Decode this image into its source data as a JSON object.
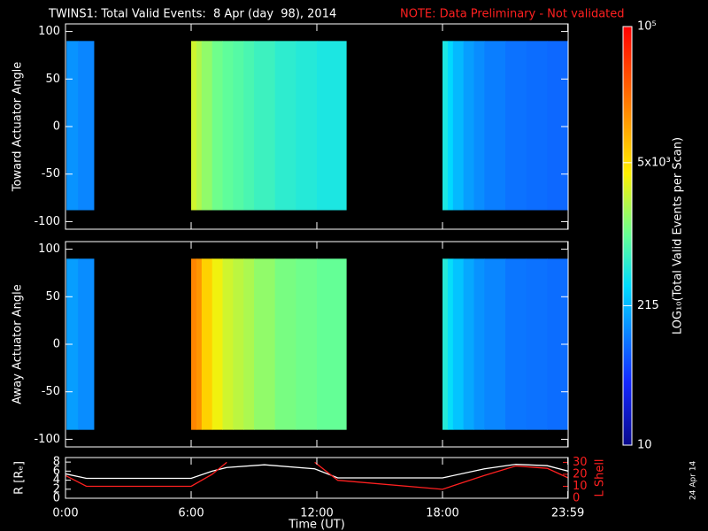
{
  "title": "TWINS1: Total Valid Events:  8 Apr (day  98), 2014",
  "note": "NOTE: Data Preliminary - Not validated",
  "date_stamp": "24 Apr 14",
  "colorbar": {
    "label": "LOG₁₀(Total Valid Events per Scan)",
    "lim": [
      10,
      100000
    ],
    "log": true,
    "ticks": [
      10,
      215,
      {
        "value": 5000,
        "label": "5x10³"
      },
      {
        "value": 100000,
        "label": "10⁵"
      }
    ]
  },
  "chart_data": [
    {
      "type": "heatmap",
      "ylabel": "Toward Actuator Angle",
      "ylim": [
        -108,
        108
      ],
      "yticks": [
        -100,
        -50,
        0,
        50,
        100
      ],
      "angle_range": [
        -88,
        90
      ],
      "windows": [
        {
          "bins": [
            0.05,
            0.6,
            1.35
          ],
          "values": [
            140,
            120
          ]
        },
        {
          "bins": [
            6.0,
            6.25,
            6.5,
            7.0,
            7.5,
            8.0,
            8.5,
            9.0,
            10.0,
            11.0,
            12.0,
            13.4
          ],
          "values": [
            2600,
            2000,
            1500,
            1100,
            950,
            850,
            750,
            650,
            550,
            500,
            450
          ]
        },
        {
          "bins": [
            18.0,
            18.25,
            18.5,
            19.0,
            19.5,
            20.0,
            21.0,
            22.0,
            23.0,
            24.0
          ],
          "values": [
            450,
            320,
            220,
            160,
            130,
            110,
            95,
            90,
            85
          ]
        }
      ]
    },
    {
      "type": "heatmap",
      "ylabel": "Away Actuator Angle",
      "ylim": [
        -108,
        108
      ],
      "yticks": [
        -100,
        -50,
        0,
        50,
        100
      ],
      "angle_range": [
        -90,
        90
      ],
      "windows": [
        {
          "bins": [
            0.05,
            0.6,
            1.35
          ],
          "values": [
            160,
            130
          ]
        },
        {
          "bins": [
            6.0,
            6.25,
            6.5,
            7.0,
            7.5,
            8.0,
            8.5,
            9.0,
            10.0,
            11.0,
            12.0,
            13.4
          ],
          "values": [
            16000,
            13000,
            6000,
            3500,
            2600,
            2200,
            1900,
            1500,
            1200,
            1100,
            1000
          ]
        },
        {
          "bins": [
            18.0,
            18.25,
            18.5,
            19.0,
            19.5,
            20.0,
            21.0,
            22.0,
            23.0,
            24.0
          ],
          "values": [
            500,
            350,
            250,
            180,
            140,
            120,
            100,
            95,
            90
          ]
        }
      ]
    },
    {
      "type": "line",
      "xlabel": "Time (UT)",
      "ylabel": "R [Rₑ]",
      "y2label": "L Shell",
      "xlim": [
        0,
        24
      ],
      "xticks": [
        {
          "value": 0,
          "label": "0:00"
        },
        {
          "value": 6,
          "label": "6:00"
        },
        {
          "value": 12,
          "label": "12:00"
        },
        {
          "value": 18,
          "label": "18:00"
        },
        {
          "value": 23.983,
          "label": "23:59"
        }
      ],
      "ylim": [
        0,
        9
      ],
      "yticks": [
        0,
        2,
        4,
        6,
        8
      ],
      "y2lim": [
        0,
        34
      ],
      "y2ticks": [
        0,
        10,
        20,
        30
      ],
      "x": [
        0,
        1,
        6,
        7,
        7.7,
        9.5,
        11.9,
        13,
        18,
        20,
        21.5,
        23,
        24
      ],
      "series": [
        {
          "color": "#ffffff",
          "values": [
            5.4,
            4.4,
            4.4,
            6,
            6.8,
            7.4,
            6.5,
            4.5,
            4.5,
            6.5,
            7.5,
            7.2,
            6
          ]
        },
        {
          "color": "#ff2020",
          "axis": "y2",
          "values": [
            19,
            10,
            10,
            20,
            30,
            null,
            30,
            15,
            7.5,
            19,
            27,
            25,
            17
          ]
        }
      ]
    }
  ]
}
